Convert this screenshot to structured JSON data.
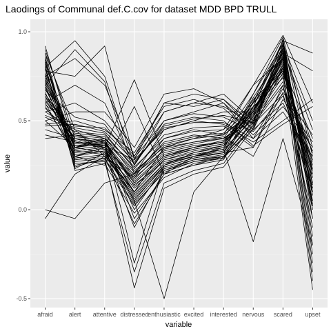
{
  "chart_data": {
    "type": "line",
    "title": "Laodings of Communal def.C.cov for dataset MDD BPD TRULL",
    "xlabel": "variable",
    "ylabel": "value",
    "categories": [
      "afraid",
      "alert",
      "attentive",
      "distressed",
      "enthusiastic",
      "excited",
      "interested",
      "nervous",
      "scared",
      "upset"
    ],
    "ylim": [
      -0.55,
      1.07
    ],
    "yticks": [
      {
        "value": 1.0,
        "label": "1.0"
      },
      {
        "value": 0.5,
        "label": "0.5"
      },
      {
        "value": 0.0,
        "label": "0.0"
      },
      {
        "value": -0.5,
        "label": "-0.5"
      }
    ],
    "grid": true,
    "legend": "none",
    "colors": {
      "panel": "#ebebeb",
      "grid_major": "#ffffff",
      "grid_minor": "#f5f5f5",
      "line": "#000000",
      "tick": "#4d4d4d"
    },
    "series": [
      {
        "values": [
          0.85,
          0.3,
          0.35,
          0.05,
          0.25,
          0.3,
          0.35,
          0.6,
          0.95,
          0.2
        ]
      },
      {
        "values": [
          0.9,
          0.4,
          0.38,
          0.15,
          0.3,
          0.35,
          0.38,
          0.55,
          0.9,
          0.1
        ]
      },
      {
        "values": [
          0.92,
          0.35,
          0.4,
          -0.05,
          0.2,
          0.3,
          0.32,
          0.65,
          0.97,
          0.3
        ]
      },
      {
        "values": [
          0.88,
          0.45,
          0.3,
          0.1,
          0.35,
          0.4,
          0.45,
          0.7,
          0.85,
          0.15
        ]
      },
      {
        "values": [
          0.8,
          0.95,
          0.75,
          0.25,
          0.5,
          0.55,
          0.6,
          0.45,
          0.8,
          0.0
        ]
      },
      {
        "values": [
          0.75,
          0.85,
          0.7,
          0.3,
          0.55,
          0.6,
          0.65,
          0.5,
          0.75,
          -0.1
        ]
      },
      {
        "values": [
          0.7,
          0.9,
          0.72,
          0.2,
          0.45,
          0.5,
          0.55,
          0.55,
          0.85,
          0.05
        ]
      },
      {
        "values": [
          0.78,
          0.75,
          0.92,
          0.28,
          0.6,
          0.58,
          0.62,
          0.48,
          0.7,
          -0.05
        ]
      },
      {
        "values": [
          0.65,
          0.4,
          0.35,
          0.73,
          0.3,
          0.35,
          0.38,
          0.6,
          0.8,
          0.4
        ]
      },
      {
        "values": [
          0.6,
          0.3,
          0.25,
          0.58,
          0.2,
          0.25,
          0.3,
          0.45,
          0.9,
          0.45
        ]
      },
      {
        "values": [
          0.82,
          0.35,
          0.38,
          -0.3,
          0.25,
          0.32,
          0.35,
          0.58,
          0.92,
          0.35
        ]
      },
      {
        "values": [
          0.45,
          0.4,
          0.38,
          0.15,
          0.3,
          0.35,
          0.38,
          0.6,
          0.95,
          0.88
        ]
      },
      {
        "values": [
          0.5,
          0.35,
          0.32,
          0.1,
          0.35,
          0.4,
          0.42,
          0.55,
          0.88,
          0.78
        ]
      },
      {
        "values": [
          0.75,
          0.38,
          0.35,
          0.05,
          -0.5,
          0.1,
          0.3,
          0.5,
          0.85,
          -0.4
        ]
      },
      {
        "values": [
          0.7,
          0.3,
          0.33,
          0.12,
          0.28,
          0.32,
          0.36,
          0.62,
          0.78,
          -0.45
        ]
      },
      {
        "values": [
          -0.05,
          0.2,
          0.3,
          0.18,
          0.4,
          0.45,
          0.42,
          0.7,
          0.98,
          0.6
        ]
      },
      {
        "values": [
          0.0,
          -0.05,
          0.15,
          0.2,
          0.38,
          0.42,
          0.4,
          0.65,
          0.93,
          0.5
        ]
      },
      {
        "values": [
          0.55,
          0.45,
          0.4,
          0.22,
          0.35,
          0.38,
          0.4,
          0.5,
          0.82,
          0.2
        ]
      },
      {
        "values": [
          0.65,
          0.42,
          0.38,
          0.18,
          0.32,
          0.36,
          0.38,
          0.52,
          0.8,
          0.25
        ]
      },
      {
        "values": [
          0.72,
          0.38,
          0.36,
          0.15,
          0.3,
          0.34,
          0.37,
          0.55,
          0.83,
          0.15
        ]
      },
      {
        "values": [
          0.68,
          0.36,
          0.37,
          0.16,
          0.31,
          0.35,
          0.39,
          0.57,
          0.81,
          0.18
        ]
      },
      {
        "values": [
          0.74,
          0.34,
          0.36,
          0.1,
          0.28,
          0.33,
          0.36,
          0.54,
          0.84,
          0.12
        ]
      },
      {
        "values": [
          0.77,
          0.37,
          0.39,
          0.13,
          0.29,
          0.34,
          0.37,
          0.56,
          0.86,
          0.08
        ]
      },
      {
        "values": [
          0.62,
          0.39,
          0.34,
          0.2,
          0.33,
          0.37,
          0.4,
          0.53,
          0.79,
          0.22
        ]
      },
      {
        "values": [
          0.58,
          0.33,
          0.31,
          0.14,
          0.27,
          0.31,
          0.34,
          0.51,
          0.77,
          0.28
        ]
      },
      {
        "values": [
          0.8,
          0.25,
          0.28,
          0.02,
          0.22,
          0.28,
          0.3,
          0.49,
          0.91,
          -0.2
        ]
      },
      {
        "values": [
          0.86,
          0.22,
          0.26,
          -0.02,
          0.18,
          0.26,
          0.29,
          0.47,
          0.89,
          -0.15
        ]
      },
      {
        "values": [
          0.55,
          0.6,
          0.5,
          0.3,
          0.6,
          0.65,
          0.62,
          0.45,
          0.6,
          0.25
        ]
      },
      {
        "values": [
          0.5,
          0.55,
          0.55,
          0.35,
          0.65,
          0.68,
          0.6,
          0.4,
          0.55,
          0.3
        ]
      },
      {
        "values": [
          0.48,
          0.5,
          0.45,
          0.32,
          0.58,
          0.62,
          0.57,
          0.42,
          0.58,
          0.35
        ]
      },
      {
        "values": [
          0.6,
          0.7,
          0.6,
          0.25,
          0.55,
          0.6,
          0.58,
          0.48,
          0.65,
          0.1
        ]
      },
      {
        "values": [
          0.42,
          0.38,
          0.36,
          0.28,
          0.45,
          0.5,
          0.48,
          0.38,
          0.5,
          0.62
        ]
      },
      {
        "values": [
          0.4,
          0.42,
          0.4,
          0.26,
          0.48,
          0.52,
          0.5,
          0.36,
          0.48,
          0.58
        ]
      },
      {
        "values": [
          0.83,
          0.28,
          0.3,
          -0.08,
          0.2,
          0.25,
          0.28,
          0.58,
          0.94,
          0.02
        ]
      },
      {
        "values": [
          0.76,
          0.32,
          0.34,
          0.08,
          0.26,
          0.3,
          0.33,
          0.52,
          0.87,
          -0.25
        ]
      },
      {
        "values": [
          0.66,
          0.29,
          0.31,
          0.06,
          0.24,
          0.29,
          0.32,
          0.55,
          0.88,
          -0.3
        ]
      },
      {
        "values": [
          0.73,
          0.31,
          0.33,
          0.04,
          0.23,
          0.28,
          0.31,
          0.53,
          0.9,
          0.03
        ]
      },
      {
        "values": [
          0.52,
          0.44,
          0.42,
          0.24,
          0.4,
          0.44,
          0.45,
          0.6,
          0.76,
          0.32
        ]
      },
      {
        "values": [
          0.57,
          0.41,
          0.39,
          0.21,
          0.37,
          0.41,
          0.43,
          0.58,
          0.74,
          0.27
        ]
      },
      {
        "values": [
          0.63,
          0.43,
          0.41,
          0.19,
          0.36,
          0.4,
          0.42,
          0.56,
          0.78,
          0.23
        ]
      },
      {
        "values": [
          0.88,
          0.26,
          0.27,
          -0.35,
          0.15,
          0.22,
          0.26,
          0.48,
          0.96,
          -0.05
        ]
      },
      {
        "values": [
          0.79,
          0.27,
          0.29,
          -0.44,
          0.12,
          0.2,
          0.24,
          0.46,
          0.93,
          0.0
        ]
      },
      {
        "values": [
          0.69,
          0.33,
          0.35,
          -0.1,
          0.22,
          0.27,
          0.3,
          0.5,
          0.86,
          -0.35
        ]
      },
      {
        "values": [
          0.71,
          0.35,
          0.37,
          0.0,
          0.24,
          0.29,
          0.32,
          0.35,
          0.7,
          0.05
        ]
      },
      {
        "values": [
          0.64,
          0.36,
          0.38,
          0.09,
          0.26,
          0.31,
          0.34,
          -0.18,
          0.4,
          -0.2
        ]
      },
      {
        "values": [
          0.61,
          0.4,
          0.37,
          0.17,
          0.34,
          0.38,
          0.41,
          0.3,
          0.62,
          0.38
        ]
      },
      {
        "values": [
          0.53,
          0.46,
          0.43,
          0.23,
          0.42,
          0.46,
          0.47,
          0.35,
          0.66,
          0.42
        ]
      },
      {
        "values": [
          0.47,
          0.48,
          0.44,
          0.27,
          0.46,
          0.49,
          0.49,
          0.4,
          0.68,
          0.33
        ]
      },
      {
        "values": [
          0.84,
          0.24,
          0.29,
          0.03,
          0.21,
          0.27,
          0.29,
          0.61,
          0.91,
          0.08
        ]
      },
      {
        "values": [
          0.81,
          0.23,
          0.32,
          0.07,
          0.25,
          0.3,
          0.34,
          0.63,
          0.88,
          0.14
        ]
      },
      {
        "values": [
          0.59,
          0.47,
          0.46,
          0.29,
          0.5,
          0.54,
          0.52,
          0.44,
          0.64,
          0.18
        ]
      },
      {
        "values": [
          0.67,
          0.52,
          0.48,
          0.26,
          0.47,
          0.51,
          0.53,
          0.49,
          0.72,
          0.12
        ]
      }
    ]
  }
}
